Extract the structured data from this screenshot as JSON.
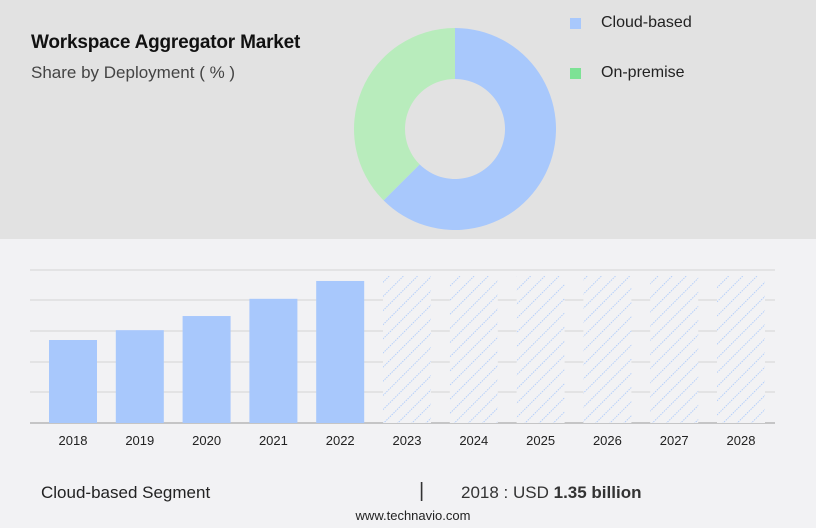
{
  "header": {
    "title": "Workspace Aggregator Market",
    "subtitle": "Share by Deployment ( % )"
  },
  "colors": {
    "top_panel_bg": "#e2e2e2",
    "bottom_panel_bg": "#f2f2f4",
    "cloud_based": "#a8c8fc",
    "on_premise_slice": "#b8ecbc",
    "on_premise_legend": "#7de295",
    "gridline": "#d4d4d4",
    "axis": "#aaaaaa"
  },
  "legend": {
    "items": [
      {
        "label": "Cloud-based",
        "color": "#a8c8fc"
      },
      {
        "label": "On-premise",
        "color": "#7de295"
      }
    ]
  },
  "footer": {
    "segment_label": "Cloud-based Segment",
    "separator": "|",
    "year_value_prefix": "2018 : USD ",
    "value_bold": "1.35 billion",
    "url": "www.technavio.com"
  },
  "chart_data": [
    {
      "type": "pie",
      "variant": "donut",
      "title": "Workspace Aggregator Market",
      "subtitle": "Share by Deployment ( % )",
      "categories": [
        "Cloud-based",
        "On-premise"
      ],
      "values": [
        62.5,
        37.5
      ],
      "colors": [
        "#a8c8fc",
        "#b8ecbc"
      ],
      "legend_position": "right"
    },
    {
      "type": "bar",
      "title": "Cloud-based Segment",
      "categories": [
        "2018",
        "2019",
        "2020",
        "2021",
        "2022",
        "2023",
        "2024",
        "2025",
        "2026",
        "2027",
        "2028"
      ],
      "values": [
        1.35,
        1.51,
        1.74,
        2.02,
        2.31,
        null,
        null,
        null,
        null,
        null,
        null
      ],
      "forecast_years": [
        "2023",
        "2024",
        "2025",
        "2026",
        "2027",
        "2028"
      ],
      "forecast_style": "hatched, full height placeholder",
      "unit": "USD billion",
      "annotation": "2018 : USD 1.35 billion",
      "xlabel": "",
      "ylabel": "",
      "grid": true,
      "y_axis_labels_visible": false,
      "ylim": [
        0,
        2.5
      ]
    }
  ]
}
